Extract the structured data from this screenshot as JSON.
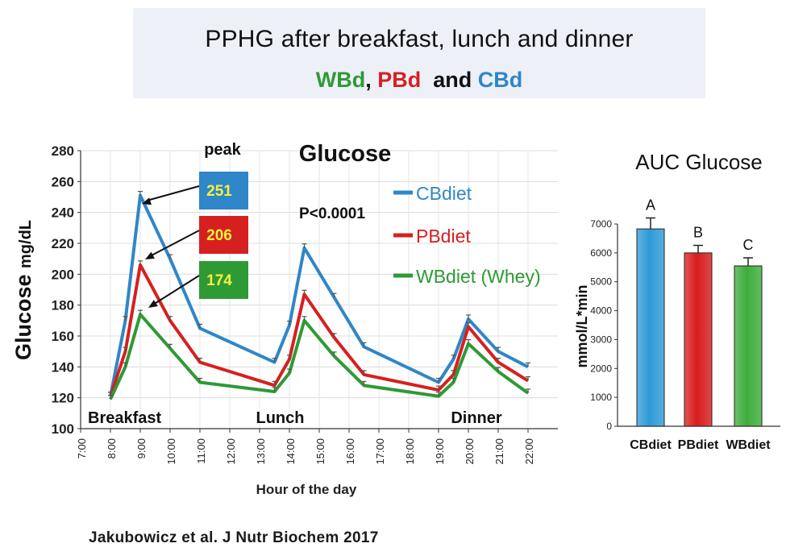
{
  "banner": {
    "title": "PPHG after breakfast, lunch and dinner",
    "sub_wb": "WBd",
    "sub_comma": ",",
    "sub_pb": "PBd",
    "sub_and": "and",
    "sub_cb": "CBd"
  },
  "citation": "Jakubowicz et al. J Nutr Biochem 2017",
  "colors": {
    "cb": "#2f86c8",
    "pb": "#d62020",
    "wb": "#2e9a35"
  },
  "chart_data": [
    {
      "type": "line",
      "title": "Glucose",
      "xlabel": "Hour of the day",
      "ylabel_main": "Glucose",
      "ylabel_unit": "mg/dL",
      "ylim": [
        100,
        280
      ],
      "yticks": [
        100,
        120,
        140,
        160,
        180,
        200,
        220,
        240,
        260,
        280
      ],
      "xlim": [
        7,
        23
      ],
      "xticks": [
        "7:00",
        "8:00",
        "9:00",
        "10:00",
        "11:00",
        "12:00",
        "13:00",
        "14:00",
        "15:00",
        "16:00",
        "17:00",
        "18:00",
        "19:00",
        "20:00",
        "21:00",
        "22:00"
      ],
      "grid": true,
      "legend_position": "right",
      "significance": "P<0.0001",
      "peak_label": "peak",
      "meal_labels": [
        {
          "text": "Breakfast",
          "x": 8.0
        },
        {
          "text": "Lunch",
          "x": 14.5
        },
        {
          "text": "Dinner",
          "x": 20.0
        }
      ],
      "series": [
        {
          "name": "CBdiet",
          "key": "cb",
          "x": [
            8,
            8.5,
            9,
            10,
            11,
            13.5,
            14,
            14.5,
            15.5,
            16.5,
            19,
            19.5,
            20,
            21,
            22
          ],
          "y": [
            121,
            170,
            251,
            210,
            165,
            143,
            167,
            217,
            185,
            153,
            130,
            145,
            171,
            150,
            140
          ]
        },
        {
          "name": "PBdiet",
          "key": "pb",
          "x": [
            8,
            8.5,
            9,
            10,
            11,
            13.5,
            14,
            14.5,
            15.5,
            16.5,
            19,
            19.5,
            20,
            21,
            22
          ],
          "y": [
            121,
            150,
            206,
            170,
            143,
            128,
            145,
            187,
            159,
            135,
            125,
            135,
            166,
            143,
            131
          ]
        },
        {
          "name": "WBdiet (Whey)",
          "key": "wb",
          "x": [
            8,
            8.5,
            9,
            10,
            11,
            13.5,
            14,
            14.5,
            15.5,
            16.5,
            19,
            19.5,
            20,
            21,
            22
          ],
          "y": [
            119,
            140,
            174,
            152,
            130,
            124,
            136,
            170,
            147,
            128,
            121,
            130,
            155,
            137,
            123
          ]
        }
      ],
      "peaks": [
        {
          "value": 251,
          "key": "cb",
          "text_color": "#f5f23a"
        },
        {
          "value": 206,
          "key": "pb",
          "text_color": "#f5f23a"
        },
        {
          "value": 174,
          "key": "wb",
          "text_color": "#f5f23a"
        }
      ]
    },
    {
      "type": "bar",
      "title": "AUC Glucose",
      "ylabel": "mmol/L*min",
      "ylim": [
        0,
        7000
      ],
      "yticks": [
        0,
        1000,
        2000,
        3000,
        4000,
        5000,
        6000,
        7000
      ],
      "categories": [
        "CBdiet",
        "PBdiet",
        "WBdiet"
      ],
      "values": [
        6830,
        6000,
        5550
      ],
      "errors": [
        380,
        260,
        280
      ],
      "letters": [
        "A",
        "B",
        "C"
      ],
      "bar_colors": [
        "#2f9ad8",
        "#d81c1c",
        "#3dad3a"
      ]
    }
  ]
}
